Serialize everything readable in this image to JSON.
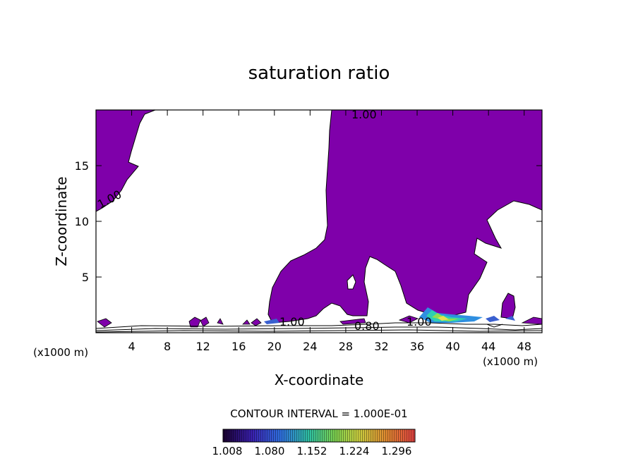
{
  "chart_data": {
    "type": "contour",
    "title": "saturation ratio",
    "xlabel": "X-coordinate",
    "ylabel": "Z-coordinate",
    "x_unit_left": "(x1000 m)",
    "x_unit_right": "(x1000 m)",
    "xlim": [
      0,
      50
    ],
    "ylim": [
      0,
      20
    ],
    "x_ticks": [
      "4",
      "8",
      "12",
      "16",
      "20",
      "24",
      "28",
      "32",
      "36",
      "40",
      "44",
      "48"
    ],
    "y_ticks": [
      "5",
      "10",
      "15"
    ],
    "contour_labels": [
      "1.00",
      "1.00",
      "1.00",
      "1.00",
      "0.80"
    ],
    "contour_interval": "CONTOUR INTERVAL = 1.000E-01",
    "colorbar_labels": [
      "1.008",
      "1.080",
      "1.152",
      "1.224",
      "1.296"
    ],
    "colors": {
      "fill": "#7f00aa",
      "contour": "#000000",
      "colorbar": [
        "#1a0030",
        "#3a20b0",
        "#2f6fe0",
        "#2fc0a0",
        "#7ad050",
        "#c8d040",
        "#e08a30",
        "#e04040"
      ]
    }
  }
}
